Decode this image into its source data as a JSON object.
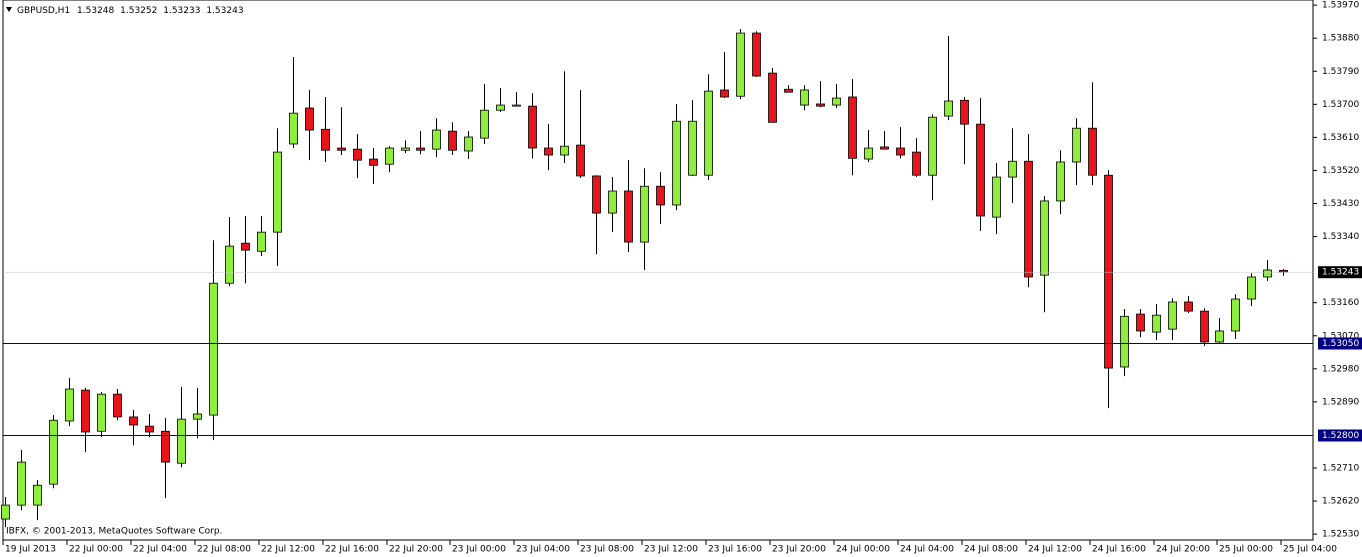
{
  "chart_data": {
    "type": "candlestick",
    "title": "GBPUSD,H1",
    "footer": "IBFX, © 2001-2013, MetaQuotes Software Corp.",
    "up_color": "#8fee3c",
    "down_color": "#e8141c",
    "line_color": "#000080",
    "categories": [
      "19 Jul 2013",
      null,
      null,
      null,
      "22 Jul 00:00",
      null,
      null,
      null,
      "22 Jul 04:00",
      null,
      null,
      null,
      "22 Jul 08:00",
      null,
      null,
      null,
      "22 Jul 12:00",
      null,
      null,
      null,
      "22 Jul 16:00",
      null,
      null,
      null,
      "22 Jul 20:00",
      null,
      null,
      null,
      "23 Jul 00:00",
      null,
      null,
      null,
      "23 Jul 04:00",
      null,
      null,
      null,
      "23 Jul 08:00",
      null,
      null,
      null,
      "23 Jul 12:00",
      null,
      null,
      null,
      "23 Jul 16:00",
      null,
      null,
      null,
      "23 Jul 20:00",
      null,
      null,
      null,
      "24 Jul 00:00",
      null,
      null,
      null,
      "24 Jul 04:00",
      null,
      null,
      null,
      "24 Jul 08:00",
      null,
      null,
      null,
      "24 Jul 12:00",
      null,
      null,
      null,
      "24 Jul 16:00",
      null,
      null,
      null,
      "24 Jul 20:00",
      null,
      null,
      null,
      "25 Jul 00:00",
      null,
      null,
      null,
      "25 Jul 04:00"
    ],
    "open": [
      1.52571,
      1.52609,
      1.52609,
      1.52666,
      1.52838,
      1.52922,
      1.5281,
      1.52911,
      1.52849,
      1.52824,
      1.5281,
      1.52723,
      1.52843,
      1.52854,
      1.53213,
      1.53322,
      1.533,
      1.53352,
      1.53592,
      1.5369,
      1.53632,
      1.53581,
      1.53578,
      1.53551,
      1.53537,
      1.53575,
      1.53581,
      1.53578,
      1.53627,
      1.53573,
      1.53608,
      1.53684,
      1.53695,
      1.53695,
      1.53581,
      1.53562,
      1.53589,
      1.53505,
      1.53404,
      1.53464,
      1.53325,
      1.53477,
      1.53426,
      1.53507,
      1.53507,
      1.53739,
      1.53722,
      1.53894,
      1.53785,
      1.53741,
      1.53698,
      1.53701,
      1.53698,
      1.5372,
      1.53551,
      1.53584,
      1.53581,
      1.5357,
      1.53507,
      1.53668,
      1.53711,
      1.53646,
      1.53393,
      1.53502,
      1.53545,
      1.53235,
      1.53437,
      1.53543,
      1.53635,
      1.53507,
      1.52985,
      1.53129,
      1.5308,
      1.53088,
      1.53162,
      1.53137,
      1.53053,
      1.53083,
      1.5317,
      1.5323,
      1.53248
    ],
    "high": [
      1.52631,
      1.52759,
      1.52677,
      1.52854,
      1.52955,
      1.52928,
      1.52917,
      1.52925,
      1.52868,
      1.52857,
      1.52846,
      1.5293,
      1.52928,
      1.5333,
      1.53393,
      1.53396,
      1.53396,
      1.53635,
      1.53829,
      1.53739,
      1.5372,
      1.53692,
      1.53619,
      1.53581,
      1.53586,
      1.53602,
      1.53627,
      1.53662,
      1.53651,
      1.53627,
      1.53755,
      1.53744,
      1.53733,
      1.5373,
      1.53646,
      1.5379,
      1.53739,
      1.53507,
      1.53502,
      1.53548,
      1.53526,
      1.53515,
      1.53701,
      1.53711,
      1.53782,
      1.53842,
      1.53905,
      1.53899,
      1.53799,
      1.53752,
      1.53752,
      1.53763,
      1.53755,
      1.53769,
      1.5363,
      1.53627,
      1.53638,
      1.53608,
      1.53673,
      1.53886,
      1.5372,
      1.53717,
      1.5354,
      1.53635,
      1.53619,
      1.5345,
      1.53575,
      1.53662,
      1.5376,
      1.53521,
      1.53143,
      1.53143,
      1.53156,
      1.53172,
      1.53178,
      1.53145,
      1.53118,
      1.53183,
      1.5324,
      1.53276,
      1.53252
    ],
    "low": [
      1.52549,
      1.52595,
      1.52568,
      1.52655,
      1.52824,
      1.52753,
      1.52794,
      1.5284,
      1.52772,
      1.52794,
      1.52628,
      1.52712,
      1.52791,
      1.52786,
      1.53205,
      1.53213,
      1.53287,
      1.5326,
      1.53581,
      1.53548,
      1.53543,
      1.53562,
      1.53499,
      1.53483,
      1.53515,
      1.53567,
      1.53564,
      1.53556,
      1.53562,
      1.53551,
      1.53592,
      1.53679,
      1.53695,
      1.53553,
      1.53521,
      1.5354,
      1.53499,
      1.53292,
      1.53352,
      1.53298,
      1.53249,
      1.53374,
      1.53412,
      1.53505,
      1.53494,
      1.53717,
      1.53714,
      1.53774,
      1.53651,
      1.53733,
      1.53684,
      1.53692,
      1.5369,
      1.53507,
      1.53543,
      1.53578,
      1.53553,
      1.53502,
      1.53439,
      1.53657,
      1.53537,
      1.53355,
      1.53347,
      1.53431,
      1.53202,
      1.53134,
      1.53401,
      1.5348,
      1.5348,
      1.52873,
      1.5296,
      1.53066,
      1.53058,
      1.53058,
      1.53132,
      1.53042,
      1.5305,
      1.53061,
      1.53151,
      1.53219,
      1.53233
    ],
    "close": [
      1.52609,
      1.52726,
      1.52663,
      1.5284,
      1.52925,
      1.52808,
      1.52911,
      1.52849,
      1.52827,
      1.52808,
      1.52726,
      1.52843,
      1.52857,
      1.53213,
      1.53314,
      1.53303,
      1.53352,
      1.5357,
      1.53676,
      1.5363,
      1.53575,
      1.53575,
      1.53548,
      1.53534,
      1.53581,
      1.53581,
      1.53575,
      1.5363,
      1.53575,
      1.53611,
      1.53684,
      1.53698,
      1.53698,
      1.53581,
      1.53562,
      1.53586,
      1.53505,
      1.53404,
      1.53464,
      1.53325,
      1.53477,
      1.53426,
      1.53654,
      1.53654,
      1.53736,
      1.5372,
      1.53894,
      1.53777,
      1.53651,
      1.53733,
      1.53739,
      1.53695,
      1.53717,
      1.53553,
      1.53581,
      1.53578,
      1.53562,
      1.53507,
      1.53665,
      1.53709,
      1.53646,
      1.53396,
      1.53502,
      1.53545,
      1.5323,
      1.53437,
      1.53543,
      1.53635,
      1.53507,
      1.52982,
      1.53123,
      1.53083,
      1.53126,
      1.53162,
      1.53137,
      1.53053,
      1.53083,
      1.5317,
      1.5323,
      1.53249,
      1.53243
    ],
    "ylim": [
      1.52514,
      1.53984
    ],
    "yticks": [
      {
        "value": 1.5397,
        "label": "1.53970"
      },
      {
        "value": 1.5388,
        "label": "1.53880"
      },
      {
        "value": 1.5379,
        "label": "1.53790"
      },
      {
        "value": 1.537,
        "label": "1.53700"
      },
      {
        "value": 1.5361,
        "label": "1.53610"
      },
      {
        "value": 1.5352,
        "label": "1.53520"
      },
      {
        "value": 1.5343,
        "label": "1.53430"
      },
      {
        "value": 1.5334,
        "label": "1.53340"
      },
      {
        "value": 1.5316,
        "label": "1.53160"
      },
      {
        "value": 1.5307,
        "label": "1.53070"
      },
      {
        "value": 1.5298,
        "label": "1.52980"
      },
      {
        "value": 1.5289,
        "label": "1.52890"
      },
      {
        "value": 1.5271,
        "label": "1.52710"
      },
      {
        "value": 1.5262,
        "label": "1.52620"
      },
      {
        "value": 1.5253,
        "label": "1.52530"
      }
    ],
    "hlines": [
      {
        "value": 1.5305,
        "label": "1.53050"
      },
      {
        "value": 1.528,
        "label": "1.52800"
      }
    ]
  }
}
